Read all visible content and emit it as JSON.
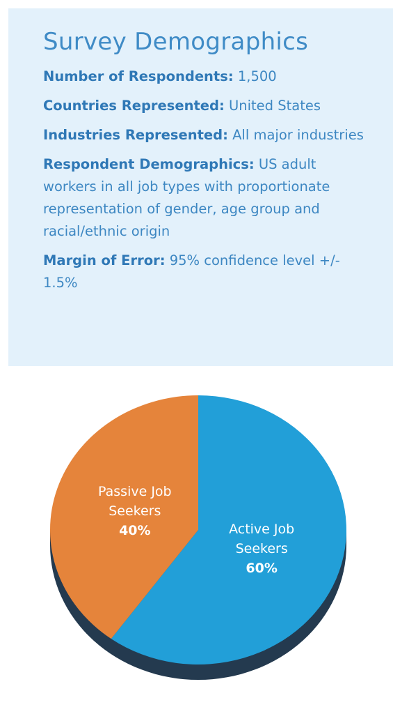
{
  "panel": {
    "title": "Survey Demographics",
    "items": [
      {
        "label": "Number of Respondents:",
        "text": "1,500"
      },
      {
        "label": "Countries Represented:",
        "text": "United States"
      },
      {
        "label": "Industries Represented:",
        "text": "All major industries"
      },
      {
        "label": "Respondent Demographics:",
        "text": "US adult workers in all job types with proportionate representation of gender, age group and racial/ethnic origin"
      },
      {
        "label": "Margin of Error:",
        "text": "95% confidence level +/- 1.5%"
      }
    ]
  },
  "chart_data": {
    "type": "pie",
    "categories": [
      "Active Job Seekers",
      "Passive Job Seekers"
    ],
    "values": [
      60,
      40
    ],
    "value_labels": [
      "60%",
      "40%"
    ],
    "colors": [
      "#229fd8",
      "#e5843b"
    ]
  }
}
